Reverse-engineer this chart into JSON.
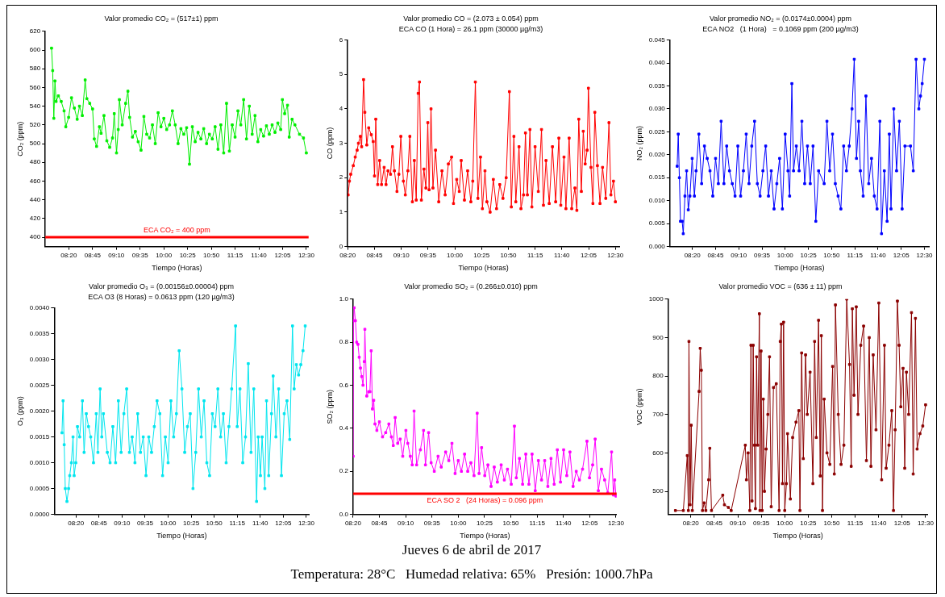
{
  "chart_data": [
    {
      "type": "line",
      "title": "Valor promedio CO₂ = (517±1) ppm",
      "xlabel": "Tiempo (Horas)",
      "ylabel": "CO₂ (ppm)",
      "color": "#00ee00",
      "marker": "square",
      "line_style": "solid",
      "xlim": [
        7.92,
        12.54
      ],
      "ylim": [
        390,
        620
      ],
      "xticks": [
        {
          "value": 8.3333,
          "label": "08:20"
        },
        {
          "value": 8.75,
          "label": "08:45"
        },
        {
          "value": 9.1667,
          "label": "09:10"
        },
        {
          "value": 9.5833,
          "label": "09:35"
        },
        {
          "value": 10,
          "label": "10:00"
        },
        {
          "value": 10.4167,
          "label": "10:25"
        },
        {
          "value": 10.8333,
          "label": "10:50"
        },
        {
          "value": 11.25,
          "label": "11:15"
        },
        {
          "value": 11.6667,
          "label": "11:40"
        },
        {
          "value": 12.0833,
          "label": "12:05"
        },
        {
          "value": 12.5,
          "label": "12:30"
        }
      ],
      "yticks": [
        400,
        420,
        440,
        460,
        480,
        500,
        520,
        540,
        560,
        580,
        600,
        620
      ],
      "ref_lines": [
        {
          "axis": "y",
          "value": 400,
          "label": "ECA CO₂ = 400 ppm",
          "color": "#ff0000"
        }
      ],
      "x": [
        8.03,
        8.05,
        8.07,
        8.09,
        8.11,
        8.15,
        8.2,
        8.25,
        8.28,
        8.33,
        8.38,
        8.43,
        8.48,
        8.52,
        8.57,
        8.62,
        8.65,
        8.7,
        8.75,
        8.78,
        8.82,
        8.87,
        8.9,
        8.95,
        9.0,
        9.05,
        9.1,
        9.13,
        9.17,
        9.2,
        9.22,
        9.27,
        9.33,
        9.37,
        9.4,
        9.45,
        9.5,
        9.55,
        9.6,
        9.65,
        9.7,
        9.75,
        9.8,
        9.85,
        9.9,
        9.95,
        10.0,
        10.05,
        10.1,
        10.15,
        10.2,
        10.25,
        10.3,
        10.35,
        10.4,
        10.45,
        10.5,
        10.55,
        10.6,
        10.65,
        10.7,
        10.75,
        10.8,
        10.85,
        10.9,
        10.95,
        11.0,
        11.05,
        11.1,
        11.15,
        11.2,
        11.25,
        11.3,
        11.35,
        11.4,
        11.45,
        11.5,
        11.55,
        11.6,
        11.65,
        11.7,
        11.75,
        11.8,
        11.85,
        11.9,
        11.95,
        12.0,
        12.05,
        12.08,
        12.12,
        12.17,
        12.2,
        12.25,
        12.3,
        12.38,
        12.45,
        12.5
      ],
      "values": [
        602,
        578,
        527,
        567,
        545,
        551,
        545,
        535,
        518,
        528,
        549,
        538,
        526,
        540,
        530,
        568,
        548,
        543,
        537,
        505,
        497,
        518,
        511,
        530,
        503,
        496,
        506,
        532,
        490,
        515,
        547,
        520,
        543,
        556,
        528,
        507,
        513,
        502,
        493,
        529,
        510,
        506,
        520,
        500,
        533,
        518,
        527,
        515,
        520,
        535,
        520,
        500,
        516,
        510,
        517,
        478,
        518,
        502,
        512,
        505,
        516,
        500,
        510,
        505,
        518,
        494,
        520,
        490,
        543,
        492,
        520,
        507,
        535,
        520,
        547,
        505,
        540,
        510,
        530,
        502,
        515,
        508,
        519,
        510,
        520,
        512,
        522,
        515,
        547,
        532,
        541,
        507,
        526,
        520,
        510,
        506,
        490
      ]
    },
    {
      "type": "line",
      "title": "Valor promedio CO = (2.073 ± 0.054) ppm",
      "subtitle": "ECA CO (1 Hora) = 26.1 ppm (30000 µg/m3)",
      "xlabel": "Tiempo (Horas)",
      "ylabel": "CO (ppm)",
      "color": "#ff0000",
      "marker": "square",
      "line_style": "solid",
      "xlim": [
        8.3333,
        12.56
      ],
      "ylim": [
        0,
        6
      ],
      "xticks": [
        {
          "value": 8.3333,
          "label": "08:20"
        },
        {
          "value": 8.75,
          "label": "08:45"
        },
        {
          "value": 9.1667,
          "label": "09:10"
        },
        {
          "value": 9.5833,
          "label": "09:35"
        },
        {
          "value": 10,
          "label": "10:00"
        },
        {
          "value": 10.4167,
          "label": "10:25"
        },
        {
          "value": 10.8333,
          "label": "10:50"
        },
        {
          "value": 11.25,
          "label": "11:15"
        },
        {
          "value": 11.6667,
          "label": "11:40"
        },
        {
          "value": 12.0833,
          "label": "12:05"
        },
        {
          "value": 12.5,
          "label": "12:30"
        }
      ],
      "yticks": [
        0,
        1,
        2,
        3,
        4,
        5,
        6
      ],
      "x": [
        8.34,
        8.36,
        8.38,
        8.42,
        8.45,
        8.48,
        8.5,
        8.53,
        8.55,
        8.58,
        8.6,
        8.63,
        8.66,
        8.7,
        8.73,
        8.75,
        8.77,
        8.8,
        8.83,
        8.86,
        8.9,
        8.93,
        8.96,
        9.0,
        9.03,
        9.06,
        9.1,
        9.13,
        9.16,
        9.2,
        9.23,
        9.27,
        9.3,
        9.34,
        9.37,
        9.4,
        9.43,
        9.45,
        9.48,
        9.52,
        9.55,
        9.58,
        9.6,
        9.63,
        9.66,
        9.7,
        9.75,
        9.8,
        9.85,
        9.9,
        9.95,
        9.98,
        10.03,
        10.07,
        10.1,
        10.15,
        10.2,
        10.25,
        10.28,
        10.32,
        10.36,
        10.4,
        10.43,
        10.47,
        10.5,
        10.55,
        10.6,
        10.65,
        10.7,
        10.75,
        10.8,
        10.85,
        10.88,
        10.92,
        10.95,
        11.0,
        11.03,
        11.07,
        11.1,
        11.13,
        11.17,
        11.2,
        11.25,
        11.3,
        11.35,
        11.38,
        11.42,
        11.47,
        11.52,
        11.57,
        11.62,
        11.65,
        11.7,
        11.73,
        11.78,
        11.82,
        11.87,
        11.9,
        11.93,
        11.97,
        12.0,
        12.03,
        12.06,
        12.08,
        12.12,
        12.15,
        12.18,
        12.22,
        12.26,
        12.3,
        12.35,
        12.4,
        12.43,
        12.47,
        12.5
      ],
      "values": [
        1.5,
        1.9,
        2.1,
        2.35,
        2.6,
        2.8,
        3.0,
        3.2,
        2.9,
        4.85,
        3.9,
        2.95,
        3.45,
        3.25,
        3.05,
        2.05,
        3.7,
        1.8,
        2.5,
        1.8,
        2.3,
        1.8,
        2.2,
        2.1,
        2.9,
        2.2,
        1.6,
        2.1,
        3.2,
        1.9,
        1.5,
        2.2,
        3.2,
        1.3,
        2.5,
        1.35,
        4.45,
        4.78,
        1.35,
        2.25,
        1.7,
        3.6,
        1.65,
        4.0,
        1.7,
        2.8,
        1.3,
        2.2,
        1.5,
        2.4,
        2.6,
        1.25,
        1.95,
        1.6,
        2.5,
        1.35,
        2.2,
        1.3,
        1.9,
        4.78,
        1.4,
        2.6,
        1.1,
        2.2,
        1.3,
        1.0,
        1.95,
        1.1,
        1.8,
        1.4,
        2.0,
        4.5,
        1.15,
        3.2,
        1.3,
        2.9,
        1.1,
        1.5,
        3.3,
        1.5,
        3.4,
        1.15,
        2.9,
        1.6,
        3.4,
        1.2,
        2.5,
        1.25,
        2.9,
        1.3,
        3.15,
        1.2,
        2.6,
        1.1,
        3.15,
        1.1,
        1.7,
        1.05,
        3.7,
        1.6,
        3.35,
        2.4,
        2.8,
        4.6,
        2.3,
        1.25,
        3.9,
        2.35,
        1.25,
        2.3,
        1.4,
        3.6,
        1.5,
        1.9,
        1.3
      ]
    },
    {
      "type": "line",
      "title": "Valor promedio NO₂ = (0.0174±0.0004) ppm",
      "subtitle": "ECA NO2   (1 Hora)   = 0.1069 ppm (200 µg/m3)",
      "xlabel": "Tiempo (Horas)",
      "ylabel": "NO₂ (ppm)",
      "color": "#0000ff",
      "marker": "square",
      "line_style": "solid",
      "xlim": [
        7.93,
        12.58
      ],
      "ylim": [
        0,
        0.045
      ],
      "xticks": [
        {
          "value": 8.3333,
          "label": "08:20"
        },
        {
          "value": 8.75,
          "label": "08:45"
        },
        {
          "value": 9.1667,
          "label": "09:10"
        },
        {
          "value": 9.5833,
          "label": "09:35"
        },
        {
          "value": 10,
          "label": "10:00"
        },
        {
          "value": 10.4167,
          "label": "10:25"
        },
        {
          "value": 10.8333,
          "label": "10:50"
        },
        {
          "value": 11.25,
          "label": "11:15"
        },
        {
          "value": 11.6667,
          "label": "11:40"
        },
        {
          "value": 12.0833,
          "label": "12:05"
        },
        {
          "value": 12.5,
          "label": "12:30"
        }
      ],
      "yticks": [
        {
          "value": 0,
          "label": "0.000"
        },
        0.005,
        {
          "value": 0.01,
          "label": "0.010"
        },
        0.015,
        {
          "value": 0.02,
          "label": "0.020"
        },
        0.025,
        {
          "value": 0.03,
          "label": "0.030"
        },
        0.035,
        {
          "value": 0.04,
          "label": "0.040"
        },
        0.045
      ],
      "x": [
        8.06,
        8.08,
        8.1,
        8.12,
        8.15,
        8.17,
        8.2,
        8.23,
        8.26,
        8.29,
        8.33,
        8.37,
        8.4,
        8.45,
        8.5,
        8.55,
        8.6,
        8.65,
        8.7,
        8.75,
        8.8,
        8.85,
        8.9,
        8.95,
        9.0,
        9.05,
        9.1,
        9.15,
        9.2,
        9.25,
        9.3,
        9.35,
        9.4,
        9.45,
        9.5,
        9.55,
        9.6,
        9.65,
        9.7,
        9.75,
        9.8,
        9.85,
        9.9,
        9.95,
        10.0,
        10.05,
        10.08,
        10.12,
        10.15,
        10.2,
        10.25,
        10.3,
        10.35,
        10.4,
        10.45,
        10.5,
        10.55,
        10.6,
        10.7,
        10.75,
        10.8,
        10.85,
        10.9,
        10.95,
        11.0,
        11.05,
        11.1,
        11.15,
        11.2,
        11.24,
        11.28,
        11.32,
        11.35,
        11.4,
        11.45,
        11.5,
        11.55,
        11.6,
        11.65,
        11.7,
        11.73,
        11.78,
        11.83,
        11.87,
        11.9,
        11.95,
        12.0,
        12.05,
        12.1,
        12.15,
        12.25,
        12.3,
        12.35,
        12.4,
        12.43,
        12.46,
        12.5
      ],
      "values": [
        0.0175,
        0.0245,
        0.015,
        0.0055,
        0.0055,
        0.0028,
        0.011,
        0.0165,
        0.008,
        0.011,
        0.0192,
        0.011,
        0.0165,
        0.0245,
        0.0137,
        0.0219,
        0.0192,
        0.0165,
        0.011,
        0.0192,
        0.0137,
        0.0273,
        0.0137,
        0.0219,
        0.0165,
        0.0137,
        0.011,
        0.0219,
        0.011,
        0.0165,
        0.0245,
        0.0137,
        0.0219,
        0.0273,
        0.0137,
        0.011,
        0.0165,
        0.0219,
        0.011,
        0.0165,
        0.0082,
        0.0137,
        0.0192,
        0.0082,
        0.0245,
        0.0165,
        0.011,
        0.0355,
        0.0165,
        0.0219,
        0.0165,
        0.0273,
        0.0137,
        0.0219,
        0.0137,
        0.0219,
        0.0055,
        0.0165,
        0.0137,
        0.0273,
        0.0165,
        0.0245,
        0.0137,
        0.011,
        0.0082,
        0.0219,
        0.0165,
        0.0219,
        0.03,
        0.0408,
        0.0192,
        0.0273,
        0.0165,
        0.011,
        0.0328,
        0.0137,
        0.0192,
        0.011,
        0.0082,
        0.0273,
        0.0028,
        0.0165,
        0.0055,
        0.0245,
        0.0082,
        0.03,
        0.0165,
        0.0273,
        0.0082,
        0.0219,
        0.0219,
        0.0165,
        0.0408,
        0.03,
        0.0328,
        0.0355,
        0.0408
      ]
    },
    {
      "type": "line",
      "title": "Valor promedio O₃ = (0.00156±0.00004) ppm",
      "subtitle": "ECA O3 (8 Horas) = 0.0613 ppm (120 µg/m3)",
      "xlabel": "Tiempo (Horas)",
      "ylabel": "O₃ (ppm)",
      "color": "#00e5ee",
      "marker": "square",
      "line_style": "solid",
      "xlim": [
        7.94,
        12.55
      ],
      "ylim": [
        0,
        0.004
      ],
      "xticks": [
        {
          "value": 8.3333,
          "label": "08:20"
        },
        {
          "value": 8.75,
          "label": "08:45"
        },
        {
          "value": 9.1667,
          "label": "09:10"
        },
        {
          "value": 9.5833,
          "label": "09:35"
        },
        {
          "value": 10,
          "label": "10:00"
        },
        {
          "value": 10.4167,
          "label": "10:25"
        },
        {
          "value": 10.8333,
          "label": "10:50"
        },
        {
          "value": 11.25,
          "label": "11:15"
        },
        {
          "value": 11.6667,
          "label": "11:40"
        },
        {
          "value": 12.0833,
          "label": "12:05"
        },
        {
          "value": 12.5,
          "label": "12:30"
        }
      ],
      "yticks": [
        {
          "value": 0,
          "label": "0.0000"
        },
        0.0005,
        {
          "value": 0.001,
          "label": "0.0010"
        },
        0.0015,
        {
          "value": 0.002,
          "label": "0.0020"
        },
        0.0025,
        {
          "value": 0.003,
          "label": "0.0030"
        },
        0.0035,
        {
          "value": 0.004,
          "label": "0.0040"
        }
      ],
      "x": [
        8.08,
        8.1,
        8.12,
        8.14,
        8.17,
        8.2,
        8.22,
        8.25,
        8.28,
        8.3,
        8.33,
        8.36,
        8.4,
        8.45,
        8.48,
        8.52,
        8.56,
        8.6,
        8.65,
        8.7,
        8.73,
        8.77,
        8.8,
        8.83,
        8.9,
        8.95,
        9.0,
        9.05,
        9.1,
        9.15,
        9.2,
        9.25,
        9.3,
        9.35,
        9.4,
        9.45,
        9.5,
        9.55,
        9.6,
        9.65,
        9.7,
        9.75,
        9.8,
        9.85,
        9.9,
        9.95,
        10.0,
        10.05,
        10.1,
        10.15,
        10.2,
        10.25,
        10.3,
        10.35,
        10.4,
        10.45,
        10.5,
        10.55,
        10.6,
        10.65,
        10.7,
        10.75,
        10.8,
        10.85,
        10.9,
        10.95,
        11.0,
        11.05,
        11.1,
        11.15,
        11.22,
        11.25,
        11.3,
        11.35,
        11.4,
        11.45,
        11.5,
        11.55,
        11.6,
        11.63,
        11.67,
        11.7,
        11.75,
        11.78,
        11.82,
        11.87,
        11.9,
        11.95,
        12.0,
        12.05,
        12.1,
        12.15,
        12.2,
        12.25,
        12.28,
        12.32,
        12.36,
        12.4,
        12.44,
        12.48
      ],
      "values": [
        0.00158,
        0.0022,
        0.00135,
        0.0005,
        0.00025,
        0.0005,
        0.00075,
        0.001,
        0.0015,
        0.00075,
        0.001,
        0.0017,
        0.0015,
        0.0022,
        0.0012,
        0.00195,
        0.0017,
        0.0015,
        0.001,
        0.00195,
        0.0012,
        0.00243,
        0.0015,
        0.00195,
        0.0012,
        0.001,
        0.0017,
        0.001,
        0.0022,
        0.0012,
        0.00195,
        0.00243,
        0.0012,
        0.0015,
        0.001,
        0.00195,
        0.0012,
        0.0015,
        0.00075,
        0.0015,
        0.0012,
        0.0017,
        0.0022,
        0.00195,
        0.00075,
        0.0015,
        0.001,
        0.0022,
        0.0015,
        0.00195,
        0.00317,
        0.00243,
        0.0012,
        0.0017,
        0.00195,
        0.0005,
        0.0012,
        0.00243,
        0.0015,
        0.0022,
        0.001,
        0.00075,
        0.00195,
        0.0017,
        0.00243,
        0.0015,
        0.00195,
        0.001,
        0.0017,
        0.00243,
        0.00365,
        0.0017,
        0.00243,
        0.001,
        0.0015,
        0.00292,
        0.0012,
        0.00243,
        0.00025,
        0.0015,
        0.00075,
        0.0015,
        0.0005,
        0.0022,
        0.00075,
        0.00195,
        0.00268,
        0.0015,
        0.00243,
        0.00075,
        0.00195,
        0.0022,
        0.00145,
        0.00365,
        0.00243,
        0.0029,
        0.0027,
        0.0029,
        0.00317,
        0.00365
      ]
    },
    {
      "type": "line",
      "title": "Valor promedio SO₂ = (0.266±0.010) ppm",
      "xlabel": "Tiempo (Horas)",
      "ylabel": "SO₂ (ppm)",
      "color": "#ff00ff",
      "marker": "square",
      "line_style": "solid",
      "xlim": [
        8.3333,
        12.51
      ],
      "ylim": [
        0,
        1.0
      ],
      "xticks": [
        {
          "value": 8.3333,
          "label": "08:20"
        },
        {
          "value": 8.75,
          "label": "08:45"
        },
        {
          "value": 9.1667,
          "label": "09:10"
        },
        {
          "value": 9.5833,
          "label": "09:35"
        },
        {
          "value": 10,
          "label": "10:00"
        },
        {
          "value": 10.4167,
          "label": "10:25"
        },
        {
          "value": 10.8333,
          "label": "10:50"
        },
        {
          "value": 11.25,
          "label": "11:15"
        },
        {
          "value": 11.6667,
          "label": "11:40"
        },
        {
          "value": 12.0833,
          "label": "12:05"
        },
        {
          "value": 12.5,
          "label": "12:30"
        }
      ],
      "yticks": [
        {
          "value": 0,
          "label": "0.0"
        },
        0.2,
        0.4,
        0.6,
        0.8,
        {
          "value": 1,
          "label": "1.0"
        }
      ],
      "ref_lines": [
        {
          "axis": "y",
          "value": 0.096,
          "label": "ECA SO 2   (24 Horas) = 0.096 ppm",
          "color": "#ff0000"
        }
      ],
      "x": [
        8.334,
        8.34,
        8.35,
        8.37,
        8.39,
        8.41,
        8.43,
        8.45,
        8.47,
        8.49,
        8.51,
        8.52,
        8.55,
        8.58,
        8.6,
        8.62,
        8.64,
        8.66,
        8.68,
        8.71,
        8.75,
        8.8,
        8.85,
        8.9,
        8.94,
        8.97,
        9.0,
        9.04,
        9.08,
        9.12,
        9.17,
        9.2,
        9.24,
        9.27,
        9.3,
        9.34,
        9.4,
        9.45,
        9.48,
        9.53,
        9.57,
        9.62,
        9.68,
        9.73,
        9.8,
        9.85,
        9.9,
        9.95,
        10.0,
        10.05,
        10.1,
        10.15,
        10.2,
        10.25,
        10.3,
        10.33,
        10.37,
        10.42,
        10.47,
        10.52,
        10.57,
        10.62,
        10.68,
        10.73,
        10.78,
        10.84,
        10.89,
        10.92,
        10.97,
        11.02,
        11.07,
        11.12,
        11.17,
        11.22,
        11.27,
        11.32,
        11.37,
        11.42,
        11.47,
        11.52,
        11.57,
        11.62,
        11.67,
        11.72,
        11.77,
        11.82,
        11.87,
        11.92,
        11.97,
        12.04,
        12.08,
        12.13,
        12.17,
        12.22,
        12.27,
        12.32,
        12.37,
        12.43,
        12.46,
        12.48,
        12.5
      ],
      "values": [
        0.27,
        0.9,
        0.96,
        0.9,
        0.8,
        0.79,
        0.73,
        0.68,
        0.64,
        0.6,
        0.71,
        0.86,
        0.55,
        0.57,
        0.57,
        0.76,
        0.49,
        0.53,
        0.42,
        0.39,
        0.43,
        0.36,
        0.38,
        0.42,
        0.36,
        0.32,
        0.45,
        0.33,
        0.35,
        0.27,
        0.39,
        0.33,
        0.27,
        0.23,
        0.48,
        0.23,
        0.3,
        0.39,
        0.23,
        0.38,
        0.24,
        0.2,
        0.27,
        0.22,
        0.29,
        0.25,
        0.33,
        0.19,
        0.25,
        0.2,
        0.28,
        0.2,
        0.24,
        0.18,
        0.47,
        0.19,
        0.31,
        0.18,
        0.23,
        0.13,
        0.22,
        0.15,
        0.23,
        0.16,
        0.21,
        0.14,
        0.41,
        0.17,
        0.26,
        0.14,
        0.28,
        0.14,
        0.28,
        0.11,
        0.25,
        0.16,
        0.25,
        0.13,
        0.26,
        0.14,
        0.3,
        0.15,
        0.3,
        0.18,
        0.29,
        0.13,
        0.2,
        0.16,
        0.21,
        0.34,
        0.17,
        0.23,
        0.35,
        0.11,
        0.21,
        0.16,
        0.1,
        0.29,
        0.09,
        0.16,
        0.085
      ]
    },
    {
      "type": "line",
      "title": "Valor promedio VOC = (636 ± 11) ppm",
      "xlabel": "Tiempo (Horas)",
      "ylabel": "VOC (ppm)",
      "color": "#8b0000",
      "marker": "square",
      "line_style": "solid",
      "xlim": [
        7.93,
        12.54
      ],
      "ylim": [
        440,
        1000
      ],
      "xticks": [
        {
          "value": 8.3333,
          "label": "08:20"
        },
        {
          "value": 8.75,
          "label": "08:45"
        },
        {
          "value": 9.1667,
          "label": "09:10"
        },
        {
          "value": 9.5833,
          "label": "09:35"
        },
        {
          "value": 10,
          "label": "10:00"
        },
        {
          "value": 10.4167,
          "label": "10:25"
        },
        {
          "value": 10.8333,
          "label": "10:50"
        },
        {
          "value": 11.25,
          "label": "11:15"
        },
        {
          "value": 11.6667,
          "label": "11:40"
        },
        {
          "value": 12.0833,
          "label": "12:05"
        },
        {
          "value": 12.5,
          "label": "12:30"
        }
      ],
      "yticks": [
        500,
        600,
        700,
        800,
        900,
        1000
      ],
      "x": [
        8.06,
        8.2,
        8.27,
        8.29,
        8.3,
        8.32,
        8.34,
        8.36,
        8.48,
        8.5,
        8.52,
        8.54,
        8.57,
        8.6,
        8.65,
        8.67,
        8.7,
        8.9,
        8.93,
        9.0,
        9.05,
        9.3,
        9.32,
        9.35,
        9.38,
        9.4,
        9.42,
        9.44,
        9.46,
        9.48,
        9.5,
        9.52,
        9.55,
        9.56,
        9.58,
        9.6,
        9.62,
        9.64,
        9.67,
        9.7,
        9.73,
        9.76,
        9.8,
        9.85,
        9.9,
        9.92,
        9.94,
        9.96,
        9.98,
        10.0,
        10.03,
        10.05,
        10.1,
        10.14,
        10.2,
        10.25,
        10.27,
        10.3,
        10.33,
        10.37,
        10.4,
        10.45,
        10.5,
        10.53,
        10.56,
        10.6,
        10.63,
        10.65,
        10.67,
        10.7,
        10.75,
        10.8,
        10.85,
        10.88,
        10.9,
        10.95,
        11.0,
        11.05,
        11.1,
        11.15,
        11.18,
        11.2,
        11.23,
        11.27,
        11.3,
        11.35,
        11.4,
        11.45,
        11.5,
        11.53,
        11.57,
        11.62,
        11.67,
        11.72,
        11.77,
        11.8,
        11.85,
        11.9,
        11.93,
        11.96,
        12.0,
        12.03,
        12.06,
        12.1,
        12.13,
        12.16,
        12.2,
        12.25,
        12.28,
        12.32,
        12.35,
        12.4,
        12.45,
        12.5
      ],
      "values": [
        450,
        450,
        593,
        450,
        890,
        465,
        672,
        450,
        760,
        872,
        815,
        450,
        470,
        450,
        530,
        612,
        450,
        490,
        465,
        458,
        450,
        620,
        530,
        600,
        450,
        880,
        475,
        880,
        620,
        455,
        850,
        620,
        962,
        450,
        865,
        450,
        740,
        500,
        610,
        700,
        850,
        460,
        770,
        780,
        450,
        890,
        935,
        520,
        940,
        450,
        520,
        650,
        480,
        640,
        680,
        710,
        450,
        860,
        585,
        855,
        700,
        810,
        520,
        890,
        640,
        945,
        540,
        905,
        450,
        740,
        600,
        570,
        825,
        545,
        985,
        700,
        570,
        620,
        1000,
        830,
        565,
        975,
        750,
        980,
        700,
        880,
        930,
        580,
        900,
        565,
        855,
        660,
        990,
        530,
        880,
        560,
        620,
        710,
        450,
        660,
        995,
        880,
        720,
        820,
        560,
        810,
        700,
        965,
        545,
        950,
        610,
        650,
        670,
        725
      ]
    },
    {
      "type": "other",
      "title": "Jueves 6 de abril de 2017",
      "annotations": [
        "Temperatura: 28°C   Humedad relativa: 65%   Presión: 1000.7hPa"
      ]
    }
  ]
}
